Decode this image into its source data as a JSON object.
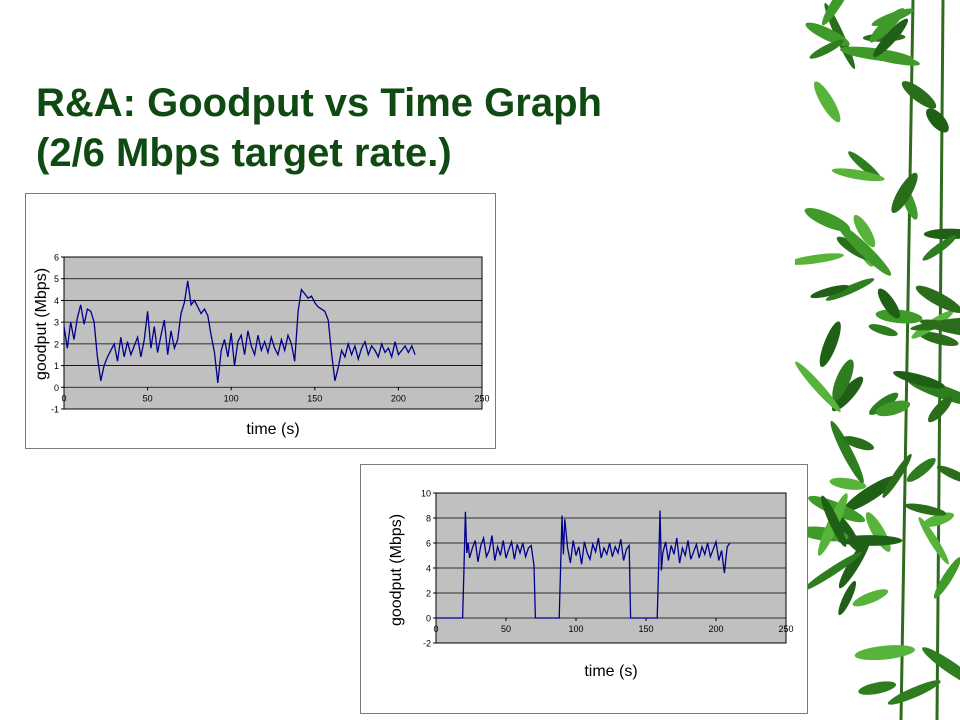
{
  "slide": {
    "title_line1": "R&A: Goodput vs Time Graph",
    "title_line2": "(2/6 Mbps target rate.)",
    "colors": {
      "title": "#0e4a12",
      "series": "#00008b",
      "plot_bg": "#c0c0c0"
    },
    "decoration_icon": "bamboo-leaves"
  },
  "chart_data": [
    {
      "type": "line",
      "title": "",
      "xlabel": "time (s)",
      "ylabel": "goodput (Mbps)",
      "xlim": [
        0,
        250
      ],
      "ylim": [
        -1,
        6
      ],
      "xticks": [
        0,
        50,
        100,
        150,
        200,
        250
      ],
      "yticks": [
        -1,
        0,
        1,
        2,
        3,
        4,
        5,
        6
      ],
      "grid": "horizontal",
      "series": [
        {
          "x": [
            0,
            2,
            4,
            6,
            8,
            10,
            12,
            14,
            16,
            18,
            20,
            22,
            24,
            26,
            28,
            30,
            32,
            34,
            36,
            38,
            40,
            42,
            44,
            46,
            48,
            50,
            52,
            54,
            56,
            58,
            60,
            62,
            64,
            66,
            68,
            70,
            72,
            74,
            76,
            78,
            80,
            82,
            84,
            86,
            88,
            90,
            92,
            94,
            96,
            98,
            100,
            102,
            104,
            106,
            108,
            110,
            112,
            114,
            116,
            118,
            120,
            122,
            124,
            126,
            128,
            130,
            132,
            134,
            136,
            138,
            140,
            142,
            144,
            146,
            148,
            150,
            152,
            154,
            156,
            158,
            160,
            162,
            164,
            166,
            168,
            170,
            172,
            174,
            176,
            178,
            180,
            182,
            184,
            186,
            188,
            190,
            192,
            194,
            196,
            198,
            200,
            202,
            204,
            206,
            208,
            210
          ],
          "values": [
            2.8,
            1.8,
            3.0,
            2.2,
            3.2,
            3.8,
            2.9,
            3.6,
            3.5,
            3.0,
            1.4,
            0.3,
            1.0,
            1.4,
            1.7,
            2.0,
            1.2,
            2.3,
            1.4,
            2.1,
            1.5,
            1.9,
            2.3,
            1.4,
            2.2,
            3.5,
            1.8,
            2.8,
            1.6,
            2.4,
            3.1,
            1.5,
            2.6,
            1.8,
            2.2,
            3.4,
            3.9,
            4.9,
            3.8,
            4.0,
            3.7,
            3.4,
            3.6,
            3.3,
            2.4,
            1.6,
            0.2,
            1.7,
            2.2,
            1.4,
            2.5,
            1.0,
            2.1,
            2.4,
            1.5,
            2.6,
            1.9,
            1.5,
            2.4,
            1.7,
            2.1,
            1.6,
            2.3,
            1.8,
            1.5,
            2.2,
            1.7,
            2.4,
            2.0,
            1.2,
            3.5,
            4.5,
            4.3,
            4.1,
            4.2,
            3.9,
            3.7,
            3.6,
            3.5,
            3.1,
            1.6,
            0.3,
            0.9,
            1.7,
            1.4,
            2.0,
            1.5,
            1.9,
            1.3,
            1.8,
            2.1,
            1.5,
            1.9,
            1.7,
            1.4,
            2.0,
            1.6,
            1.8,
            1.4,
            2.1,
            1.5,
            1.7,
            1.9,
            1.6,
            1.9,
            1.5
          ]
        }
      ]
    },
    {
      "type": "line",
      "title": "",
      "xlabel": "time (s)",
      "ylabel": "goodput (Mbps)",
      "xlim": [
        0,
        250
      ],
      "ylim": [
        -2,
        10
      ],
      "xticks": [
        0,
        50,
        100,
        150,
        200,
        250
      ],
      "yticks": [
        -2,
        0,
        2,
        4,
        6,
        8,
        10
      ],
      "grid": "horizontal",
      "series": [
        {
          "x": [
            0,
            19,
            20,
            21,
            22,
            23,
            24,
            26,
            28,
            30,
            32,
            34,
            36,
            38,
            40,
            42,
            44,
            46,
            48,
            50,
            52,
            54,
            56,
            58,
            60,
            62,
            64,
            66,
            68,
            70,
            71,
            80,
            88,
            89,
            90,
            91,
            92,
            94,
            96,
            98,
            100,
            102,
            104,
            106,
            108,
            110,
            112,
            114,
            116,
            118,
            120,
            122,
            124,
            126,
            128,
            130,
            132,
            134,
            136,
            138,
            139,
            140,
            158,
            159,
            160,
            161,
            162,
            164,
            166,
            168,
            170,
            172,
            174,
            176,
            178,
            180,
            182,
            184,
            186,
            188,
            190,
            192,
            194,
            196,
            198,
            200,
            202,
            204,
            206,
            208,
            210
          ],
          "values": [
            0,
            0,
            4,
            8.5,
            5.2,
            6.0,
            4.8,
            5.6,
            6.2,
            4.5,
            5.8,
            6.4,
            4.9,
            5.4,
            6.6,
            4.6,
            5.7,
            5.0,
            6.2,
            4.8,
            5.5,
            6.1,
            4.7,
            5.9,
            5.2,
            6.0,
            4.9,
            5.6,
            5.8,
            4.2,
            0,
            0,
            0,
            4,
            8.2,
            5.1,
            7.9,
            5.6,
            4.4,
            6.2,
            5.0,
            5.7,
            4.3,
            6.1,
            5.2,
            4.7,
            5.9,
            5.3,
            6.4,
            4.8,
            5.6,
            5.1,
            6.0,
            4.9,
            5.7,
            5.2,
            6.3,
            4.6,
            5.5,
            5.8,
            0,
            0,
            0,
            4,
            8.6,
            3.8,
            5.2,
            6.1,
            4.6,
            5.8,
            5.1,
            6.4,
            4.4,
            5.6,
            5.0,
            6.2,
            4.7,
            5.3,
            5.9,
            4.8,
            5.7,
            5.1,
            6.0,
            4.9,
            5.5,
            6.1,
            4.6,
            5.4,
            3.6,
            5.7,
            6.0
          ]
        }
      ]
    }
  ]
}
